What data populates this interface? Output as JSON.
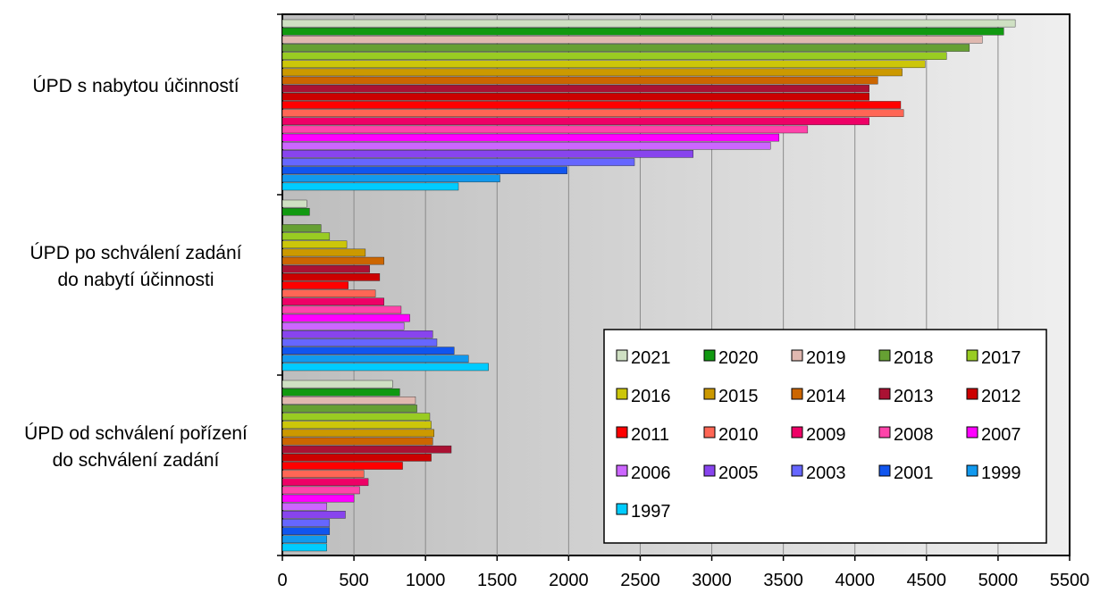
{
  "chart_data": {
    "type": "bar",
    "orientation": "horizontal",
    "title": "",
    "xlabel": "",
    "ylabel": "",
    "xlim": [
      0,
      5500
    ],
    "x_ticks": [
      0,
      500,
      1000,
      1500,
      2000,
      2500,
      3000,
      3500,
      4000,
      4500,
      5000,
      5500
    ],
    "grid": "vertical",
    "legend_position": "bottom-right",
    "categories": [
      {
        "lines": [
          "ÚPD s nabytou účinností"
        ]
      },
      {
        "lines": [
          "ÚPD po schválení zadání",
          "do nabytí účinnosti"
        ]
      },
      {
        "lines": [
          "ÚPD od schválení pořízení",
          "do schválení zadání"
        ]
      }
    ],
    "series": [
      {
        "name": "2021",
        "color": "#cfe0c3",
        "values": [
          5120,
          170,
          770
        ]
      },
      {
        "name": "2020",
        "color": "#119911",
        "values": [
          5040,
          190,
          820
        ]
      },
      {
        "name": "2019",
        "color": "#e0b8b0",
        "values": [
          4890,
          0,
          930
        ]
      },
      {
        "name": "2018",
        "color": "#66a033",
        "values": [
          4800,
          270,
          940
        ]
      },
      {
        "name": "2017",
        "color": "#99cc22",
        "values": [
          4640,
          330,
          1030
        ]
      },
      {
        "name": "2016",
        "color": "#ccc60a",
        "values": [
          4490,
          450,
          1040
        ]
      },
      {
        "name": "2015",
        "color": "#cc9900",
        "values": [
          4330,
          580,
          1060
        ]
      },
      {
        "name": "2014",
        "color": "#cc6600",
        "values": [
          4160,
          710,
          1050
        ]
      },
      {
        "name": "2013",
        "color": "#aa1133",
        "values": [
          4100,
          610,
          1180
        ]
      },
      {
        "name": "2012",
        "color": "#cc0000",
        "values": [
          4100,
          680,
          1040
        ]
      },
      {
        "name": "2011",
        "color": "#ff0000",
        "values": [
          4320,
          460,
          840
        ]
      },
      {
        "name": "2010",
        "color": "#ff6655",
        "values": [
          4340,
          650,
          570
        ]
      },
      {
        "name": "2009",
        "color": "#ee0066",
        "values": [
          4100,
          710,
          600
        ]
      },
      {
        "name": "2008",
        "color": "#ff44aa",
        "values": [
          3670,
          830,
          540
        ]
      },
      {
        "name": "2007",
        "color": "#ff00ff",
        "values": [
          3470,
          890,
          500
        ]
      },
      {
        "name": "2006",
        "color": "#cc66ff",
        "values": [
          3410,
          850,
          310
        ]
      },
      {
        "name": "2005",
        "color": "#8844ee",
        "values": [
          2870,
          1050,
          440
        ]
      },
      {
        "name": "2003",
        "color": "#6666ff",
        "values": [
          2460,
          1080,
          330
        ]
      },
      {
        "name": "2001",
        "color": "#1155ee",
        "values": [
          1990,
          1200,
          330
        ]
      },
      {
        "name": "1999",
        "color": "#1199ee",
        "values": [
          1520,
          1300,
          310
        ]
      },
      {
        "name": "1997",
        "color": "#00ccff",
        "values": [
          1230,
          1440,
          310
        ]
      }
    ],
    "legend_columns": 5
  }
}
